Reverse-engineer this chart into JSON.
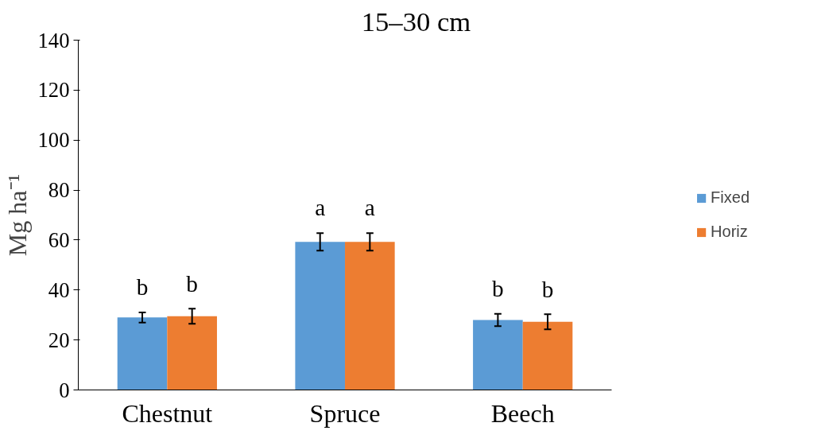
{
  "chart_data": {
    "type": "bar",
    "title": "15–30 cm",
    "ylabel": "Mg ha⁻¹",
    "categories": [
      "Chestnut",
      "Spruce",
      "Beech"
    ],
    "series": [
      {
        "name": "Fixed",
        "color": "#5b9bd5",
        "values": [
          29,
          59.3,
          28
        ],
        "errors": [
          2,
          3.5,
          2.5
        ]
      },
      {
        "name": "Horiz",
        "color": "#ed7d31",
        "values": [
          29.5,
          59.3,
          27.3
        ],
        "errors": [
          3,
          3.5,
          3
        ]
      }
    ],
    "ylim": [
      0,
      140
    ],
    "yticks": [
      0,
      20,
      40,
      60,
      80,
      100,
      120,
      140
    ],
    "grid": false,
    "legend": "right",
    "annotations": [
      "b",
      "b",
      "a",
      "a",
      "b",
      "b"
    ]
  }
}
